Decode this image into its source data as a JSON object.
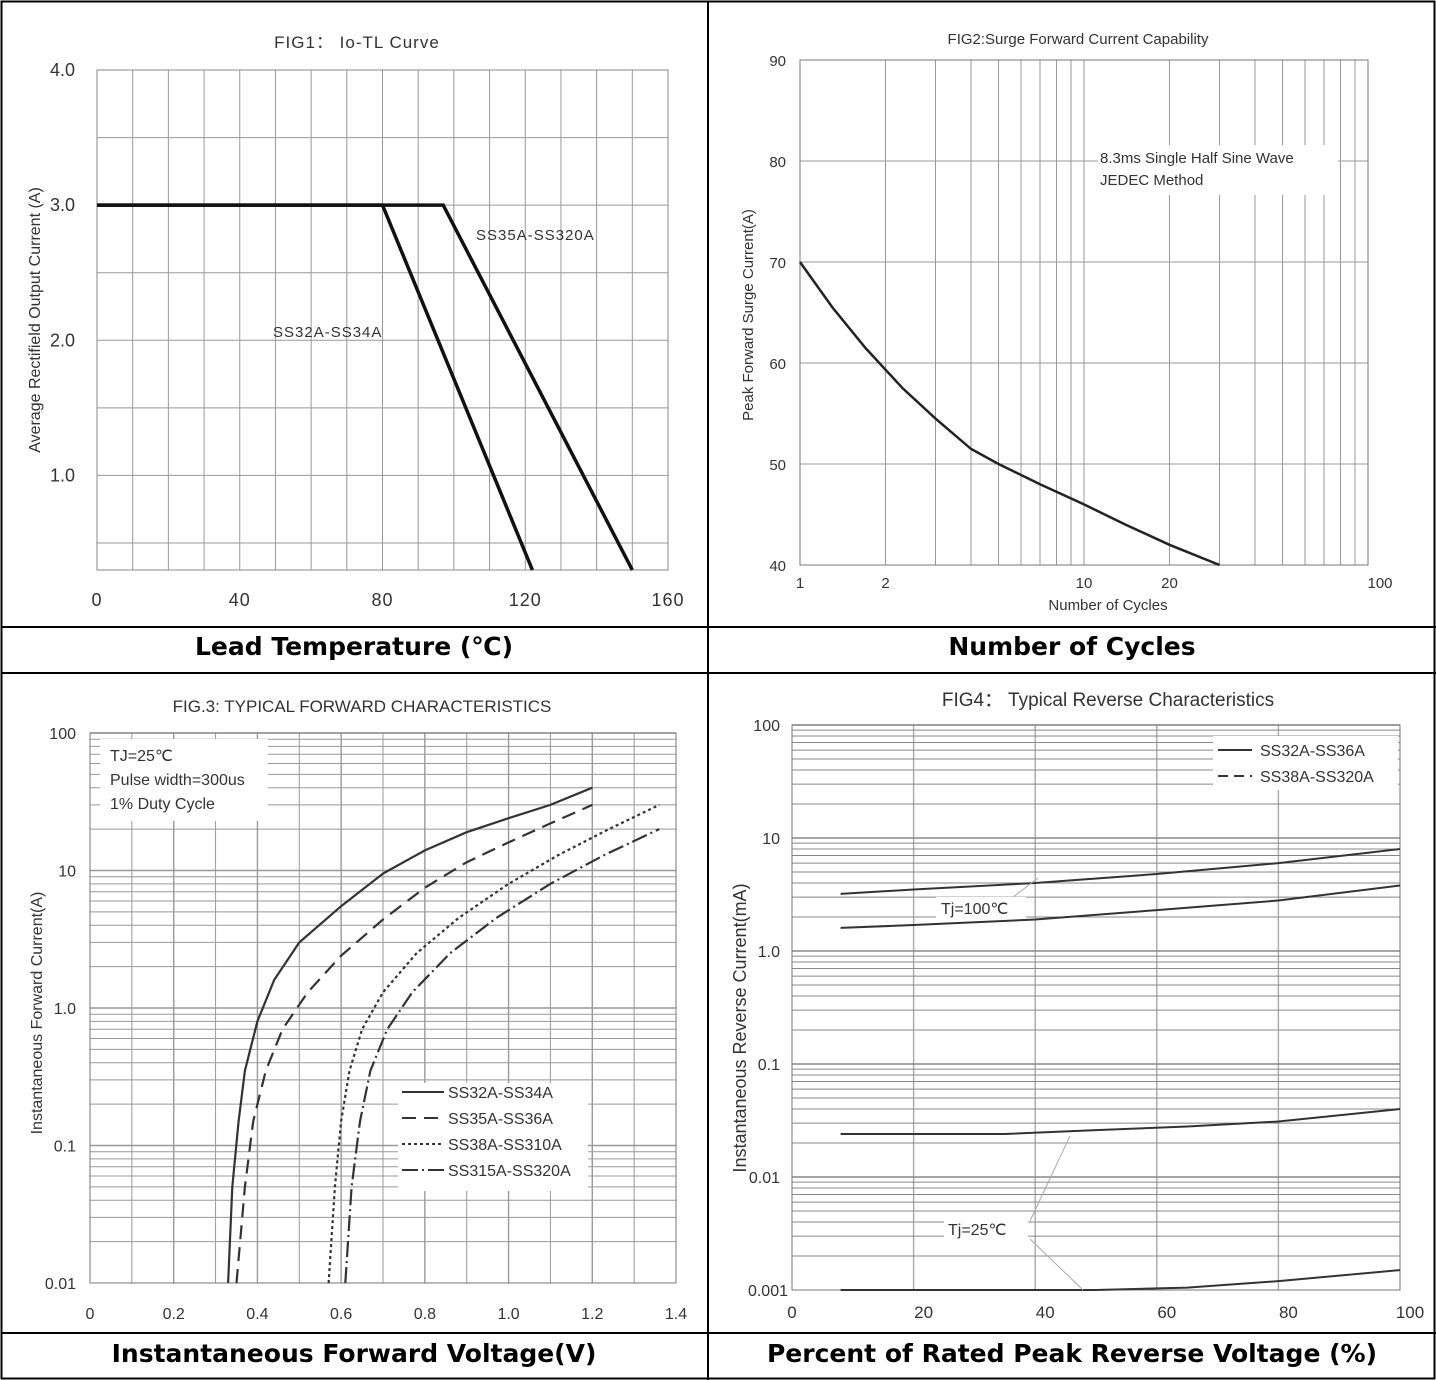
{
  "chart_data": [
    {
      "type": "line",
      "title": "FIG1： Io-TL Curve",
      "xlabel": "Lead Temperature (℃)",
      "ylabel": "Average Rectifield Output Current (A)",
      "x_ticks": [
        "0",
        "40",
        "80",
        "120",
        "160"
      ],
      "y_ticks": [
        "1.0",
        "2.0",
        "3.0",
        "4.0"
      ],
      "xlim": [
        0,
        160
      ],
      "ylim": [
        0.3,
        4.0
      ],
      "grid": true,
      "series": [
        {
          "name": "SS32A-SS34A",
          "x": [
            0,
            80,
            122
          ],
          "y": [
            3.0,
            3.0,
            0.3
          ]
        },
        {
          "name": "SS35A-SS320A",
          "x": [
            0,
            97,
            150
          ],
          "y": [
            3.0,
            3.0,
            0.3
          ]
        }
      ]
    },
    {
      "type": "line",
      "title": "FIG2:Surge Forward Current Capability",
      "xlabel": "Number of Cycles",
      "ylabel": "Peak Forward Surge Current(A)",
      "x_scale": "log",
      "x_ticks": [
        "1",
        "2",
        "10",
        "20",
        "100"
      ],
      "y_ticks": [
        "40",
        "50",
        "60",
        "70",
        "80",
        "90"
      ],
      "xlim": [
        1,
        100
      ],
      "ylim": [
        40,
        90
      ],
      "grid": true,
      "annotation": [
        "8.3ms Single Half Sine Wave",
        "JEDEC Method"
      ],
      "series": [
        {
          "x": [
            1,
            1.3,
            1.7,
            2.3,
            3,
            4,
            5,
            7,
            10,
            14,
            20,
            30
          ],
          "y": [
            70,
            65.5,
            61.5,
            57.5,
            54.5,
            51.5,
            50,
            48,
            46,
            44,
            42,
            40
          ]
        }
      ]
    },
    {
      "type": "line",
      "title": "FIG.3: TYPICAL FORWARD CHARACTERISTICS",
      "xlabel": "Instantaneous Forward Voltage(V)",
      "ylabel": "Instantaneous Forward Current(A)",
      "y_scale": "log",
      "x_ticks": [
        "0",
        "0.2",
        "0.4",
        "0.6",
        "0.8",
        "1.0",
        "1.2",
        "1.4"
      ],
      "y_ticks": [
        "0.01",
        "0.1",
        "1.0",
        "10",
        "100"
      ],
      "xlim": [
        0,
        1.4
      ],
      "ylim": [
        0.01,
        100
      ],
      "grid": true,
      "annotation": [
        "TJ=25℃",
        "Pulse width=300us",
        "1% Duty Cycle"
      ],
      "legend_position": "bottom-right",
      "series": [
        {
          "name": "SS32A-SS34A",
          "style": "solid",
          "x": [
            0.33,
            0.34,
            0.355,
            0.37,
            0.4,
            0.44,
            0.5,
            0.6,
            0.7,
            0.8,
            0.9,
            1.0,
            1.1,
            1.2
          ],
          "y": [
            0.01,
            0.05,
            0.15,
            0.35,
            0.8,
            1.6,
            3.0,
            5.5,
            9.5,
            14,
            19,
            24,
            30,
            40
          ]
        },
        {
          "name": "SS35A-SS36A",
          "style": "dashed",
          "x": [
            0.35,
            0.37,
            0.39,
            0.42,
            0.46,
            0.52,
            0.6,
            0.7,
            0.8,
            0.9,
            1.0,
            1.1,
            1.2
          ],
          "y": [
            0.01,
            0.05,
            0.15,
            0.35,
            0.7,
            1.3,
            2.4,
            4.4,
            7.5,
            11.5,
            16,
            22,
            30
          ]
        },
        {
          "name": "SS38A-SS310A",
          "style": "dotted",
          "x": [
            0.57,
            0.585,
            0.6,
            0.62,
            0.65,
            0.7,
            0.78,
            0.88,
            1.0,
            1.12,
            1.24,
            1.36
          ],
          "y": [
            0.01,
            0.05,
            0.15,
            0.35,
            0.7,
            1.3,
            2.5,
            4.5,
            8,
            13,
            20,
            30
          ]
        },
        {
          "name": "SS315A-SS320A",
          "style": "dashdot",
          "x": [
            0.61,
            0.625,
            0.645,
            0.67,
            0.71,
            0.77,
            0.86,
            0.97,
            1.1,
            1.23,
            1.36
          ],
          "y": [
            0.01,
            0.05,
            0.15,
            0.35,
            0.7,
            1.3,
            2.5,
            4.5,
            8,
            13,
            20
          ]
        }
      ]
    },
    {
      "type": "line",
      "title": "FIG4： Typical Reverse Characteristics",
      "xlabel": "Percent of Rated Peak Reverse Voltage (%)",
      "ylabel": "Instantaneous Reverse Current(mA)",
      "y_scale": "log",
      "x_ticks": [
        "0",
        "20",
        "40",
        "60",
        "80",
        "100"
      ],
      "y_ticks": [
        "0.001",
        "0.01",
        "0.1",
        "1.0",
        "10",
        "100"
      ],
      "xlim": [
        0,
        100
      ],
      "ylim": [
        0.001,
        100
      ],
      "grid": true,
      "annotations": [
        "Tj=100℃",
        "Tj=25℃"
      ],
      "legend_position": "top-right",
      "legend": [
        {
          "name": "SS32A-SS36A",
          "style": "solid"
        },
        {
          "name": "SS38A-SS320A",
          "style": "dashed"
        }
      ],
      "series": [
        {
          "label": "Tj=100℃ upper",
          "x": [
            8,
            20,
            40,
            60,
            80,
            100
          ],
          "y": [
            3.2,
            3.5,
            4.0,
            4.8,
            6.0,
            8.0
          ]
        },
        {
          "label": "Tj=100℃ lower",
          "x": [
            8,
            20,
            40,
            60,
            80,
            100
          ],
          "y": [
            1.6,
            1.7,
            1.9,
            2.3,
            2.8,
            3.8
          ]
        },
        {
          "label": "Tj=25℃ upper",
          "x": [
            8,
            20,
            35,
            50,
            65,
            80,
            100
          ],
          "y": [
            0.024,
            0.024,
            0.024,
            0.026,
            0.028,
            0.031,
            0.04
          ]
        },
        {
          "label": "Tj=25℃ lower",
          "x": [
            8,
            30,
            50,
            65,
            80,
            100
          ],
          "y": [
            0.001,
            0.001,
            0.001,
            0.00105,
            0.0012,
            0.0015
          ]
        }
      ]
    }
  ]
}
